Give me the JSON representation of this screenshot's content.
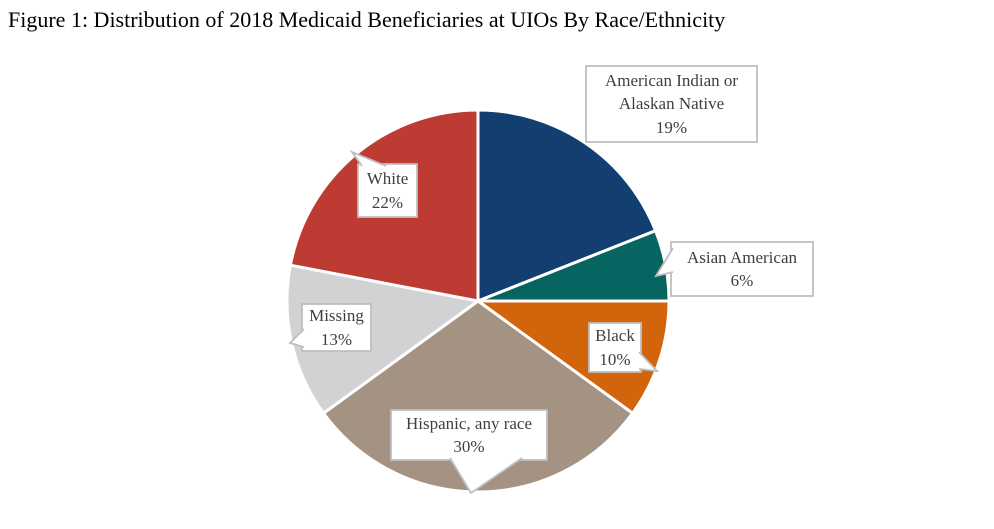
{
  "chart_data": {
    "type": "pie",
    "title": "Figure 1: Distribution of 2018 Medicaid Beneficiaries at UIOs By Race/Ethnicity",
    "start_angle_deg": 0,
    "direction": "clockwise",
    "legend_position": "none",
    "label_style": "white-callout-boxes-with-category-and-percent",
    "separator_color": "#FFFFFF",
    "callout": {
      "bg": "#FFFFFF",
      "border": "#BFBFBF",
      "text_color": "#3F3F3F"
    },
    "slices": [
      {
        "label": "American Indian or Alaskan Native",
        "value_pct": 19,
        "pct_text": "19%",
        "color": "#123F70"
      },
      {
        "label": "Asian American",
        "value_pct": 6,
        "pct_text": "6%",
        "color": "#066560"
      },
      {
        "label": "Black",
        "value_pct": 10,
        "pct_text": "10%",
        "color": "#D2640B"
      },
      {
        "label": "Hispanic, any race",
        "value_pct": 30,
        "pct_text": "30%",
        "color": "#A49383"
      },
      {
        "label": "Missing",
        "value_pct": 13,
        "pct_text": "13%",
        "color": "#D2D2D4"
      },
      {
        "label": "White",
        "value_pct": 22,
        "pct_text": "22%",
        "color": "#BE3B33"
      }
    ]
  }
}
